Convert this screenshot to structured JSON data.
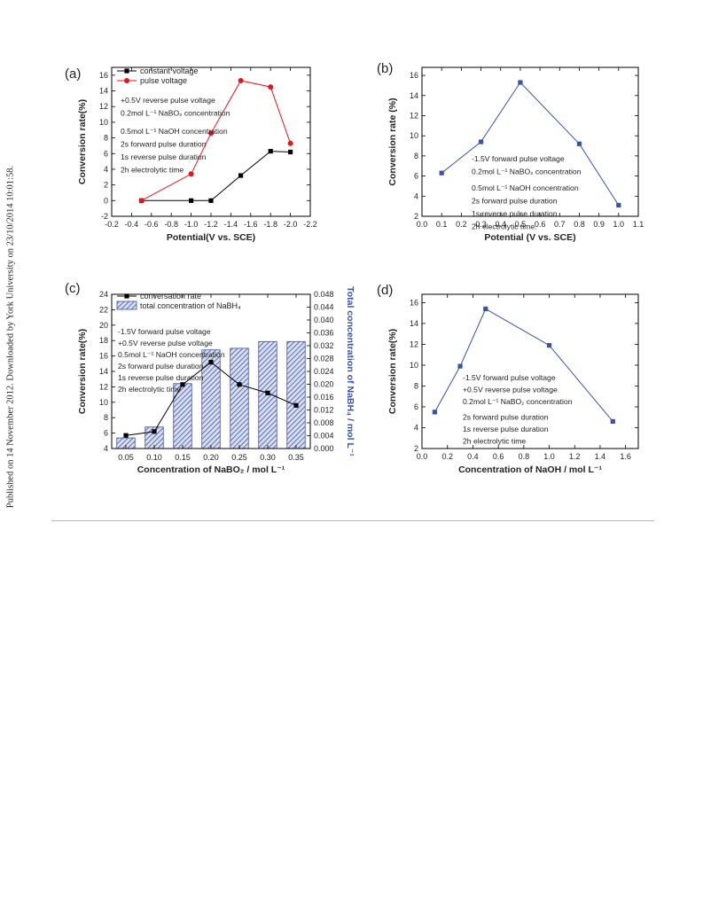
{
  "side_note": "Published on 14 November 2012. Downloaded by York University on 23/10/2014 10:01:58.",
  "chart_data": [
    {
      "panel": "(a)",
      "type": "line",
      "xlabel": "Potential(V vs. SCE)",
      "ylabel": "Conversion rate(%)",
      "xlim": [
        -0.2,
        -2.2
      ],
      "ylim": [
        -2,
        17
      ],
      "x_ticks": [
        -0.2,
        -0.4,
        -0.6,
        -0.8,
        -1.0,
        -1.2,
        -1.4,
        -1.6,
        -1.8,
        -2.0,
        -2.2
      ],
      "x_tick_labels": [
        "-0.2",
        "-0.4",
        "-0.6",
        "-0.8",
        "-1.0",
        "-1.2",
        "-1.4",
        "-1.6",
        "-1.8",
        "-2.0",
        "-2.2"
      ],
      "y_ticks": [
        -2,
        0,
        2,
        4,
        6,
        8,
        10,
        12,
        14,
        16
      ],
      "y_tick_labels": [
        "-2",
        "0",
        "2",
        "4",
        "6",
        "8",
        "10",
        "12",
        "14",
        "16"
      ],
      "series": [
        {
          "name": "constant voltage",
          "color": "#000000",
          "marker": "square",
          "x": [
            -0.5,
            -1.0,
            -1.2,
            -1.5,
            -1.8,
            -2.0
          ],
          "y": [
            0.0,
            0.0,
            0.0,
            3.2,
            6.3,
            6.2
          ]
        },
        {
          "name": "pulse voltage",
          "color": "#e8141c",
          "marker": "circle",
          "x": [
            -0.5,
            -1.0,
            -1.2,
            -1.5,
            -1.8,
            -2.0
          ],
          "y": [
            0.0,
            3.4,
            8.6,
            15.3,
            14.5,
            7.3
          ]
        }
      ],
      "annotations": [
        "+0.5V reverse pulse voltage",
        "0.2mol L⁻¹ NaBO₂ concentration",
        "0.5mol L⁻¹ NaOH concentration",
        "2s forward pulse duration",
        "1s reverse pulse duration",
        "2h electrolytic time"
      ]
    },
    {
      "panel": "(b)",
      "type": "line",
      "xlabel": "Potential (V vs. SCE)",
      "ylabel": "Conversion rate (%)",
      "xlim": [
        0.0,
        1.1
      ],
      "ylim": [
        2,
        16.8
      ],
      "x_ticks": [
        0.0,
        0.1,
        0.2,
        0.3,
        0.4,
        0.5,
        0.6,
        0.7,
        0.8,
        0.9,
        1.0,
        1.1
      ],
      "x_tick_labels": [
        "0.0",
        "0.1",
        "0.2",
        "0.3",
        "0.4",
        "0.5",
        "0.6",
        "0.7",
        "0.8",
        "0.9",
        "1.0",
        "1.1"
      ],
      "y_ticks": [
        2,
        4,
        6,
        8,
        10,
        12,
        14,
        16
      ],
      "y_tick_labels": [
        "2",
        "4",
        "6",
        "8",
        "10",
        "12",
        "14",
        "16"
      ],
      "series": [
        {
          "color": "#3a52a6",
          "marker": "square",
          "x": [
            0.1,
            0.3,
            0.5,
            0.8,
            1.0
          ],
          "y": [
            6.3,
            9.4,
            15.3,
            9.2,
            3.1
          ]
        }
      ],
      "annotations": [
        "-1.5V forward pulse voltage",
        "0.2mol L⁻¹ NaBO₂ concentration",
        "0.5mol L⁻¹ NaOH concentration",
        "2s forward pulse duration",
        "1s reverse pulse duration",
        "2h electrolytic time."
      ]
    },
    {
      "panel": "(c)",
      "type": "bar",
      "xlabel": "Concentration of NaBO₂ / mol L⁻¹",
      "ylabel": "Conversion rate(%)",
      "y2label": "Total concentration of NaBH₄ / mol L⁻¹",
      "categories": [
        "0.05",
        "0.10",
        "0.15",
        "0.20",
        "0.25",
        "0.30",
        "0.35"
      ],
      "ylim": [
        4,
        24
      ],
      "y2lim": [
        0.0,
        0.048
      ],
      "y_ticks": [
        4,
        6,
        8,
        10,
        12,
        14,
        16,
        18,
        20,
        22,
        24
      ],
      "y_tick_labels": [
        "4",
        "6",
        "8",
        "10",
        "12",
        "14",
        "16",
        "18",
        "20",
        "22",
        "24"
      ],
      "y2_ticks": [
        0.0,
        0.004,
        0.008,
        0.012,
        0.016,
        0.02,
        0.024,
        0.028,
        0.032,
        0.036,
        0.04,
        0.044,
        0.048
      ],
      "y2_tick_labels": [
        "0.000",
        "0.004",
        "0.008",
        "0.012",
        "0.016",
        "0.020",
        "0.024",
        "0.028",
        "0.032",
        "0.036",
        "0.040",
        "0.044",
        "0.048"
      ],
      "series": [
        {
          "name": "conversation rate",
          "type": "line",
          "color": "#000000",
          "marker": "square",
          "values": [
            5.7,
            6.2,
            12.3,
            15.2,
            12.3,
            11.2,
            9.6
          ]
        },
        {
          "name": "total concentration of NaBH₄",
          "type": "bar",
          "axis": "y2",
          "color": "#3a52a6",
          "values": [
            0.0033,
            0.0067,
            0.0202,
            0.0307,
            0.0312,
            0.0333,
            0.0333
          ]
        }
      ],
      "annotations": [
        "-1.5V forward pulse voltage",
        "+0.5V reverse pulse voltage",
        "0.5mol L⁻¹ NaOH concentration",
        "2s forward pulse duration",
        "1s reverse pulse duration",
        "2h electrolytic time"
      ]
    },
    {
      "panel": "(d)",
      "type": "line",
      "xlabel": "Concentration of NaOH / mol L⁻¹",
      "ylabel": "Conversion rate(%)",
      "xlim": [
        0.0,
        1.7
      ],
      "ylim": [
        2,
        16.8
      ],
      "x_ticks": [
        0.0,
        0.2,
        0.4,
        0.6,
        0.8,
        1.0,
        1.2,
        1.4,
        1.6
      ],
      "x_tick_labels": [
        "0.0",
        "0.2",
        "0.4",
        "0.6",
        "0.8",
        "1.0",
        "1.2",
        "1.4",
        "1.6"
      ],
      "y_ticks": [
        2,
        4,
        6,
        8,
        10,
        12,
        14,
        16
      ],
      "y_tick_labels": [
        "2",
        "4",
        "6",
        "8",
        "10",
        "12",
        "14",
        "16"
      ],
      "series": [
        {
          "color": "#3a52a6",
          "marker": "square",
          "x": [
            0.1,
            0.3,
            0.5,
            1.0,
            1.5
          ],
          "y": [
            5.5,
            9.9,
            15.4,
            11.9,
            4.6
          ]
        }
      ],
      "annotations": [
        "-1.5V forward pulse voltage",
        "+0.5V reverse pulse voltage",
        "0.2mol L⁻¹ NaBO₂ concentration",
        "2s forward pulse duration",
        "1s reverse pulse duration",
        "2h electrolytic time"
      ]
    }
  ]
}
